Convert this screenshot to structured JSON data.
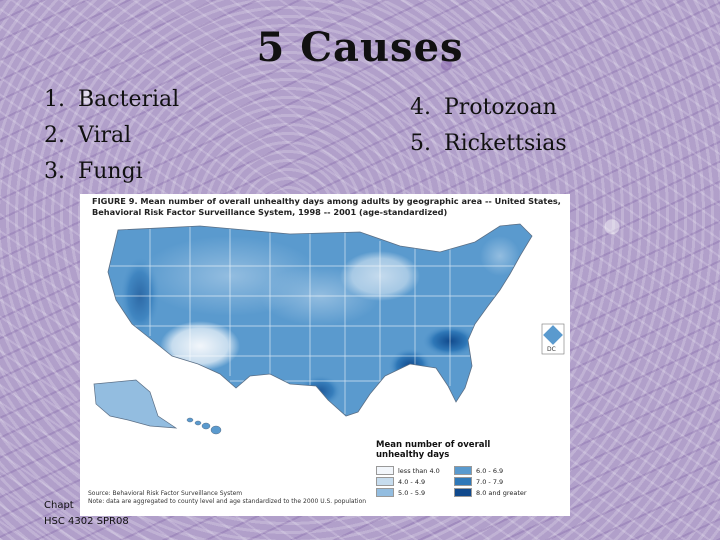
{
  "slide": {
    "title": "5 Causes",
    "causes_left": [
      {
        "num": "1.",
        "label": "Bacterial"
      },
      {
        "num": "2.",
        "label": "Viral"
      },
      {
        "num": "3.",
        "label": "Fungi"
      }
    ],
    "causes_right": [
      {
        "num": "4.",
        "label": "Protozoan"
      },
      {
        "num": "5.",
        "label": "Rickettsias"
      }
    ],
    "footer": {
      "line1": "Chapt",
      "line2": "HSC 4302 SPR08"
    }
  },
  "figure": {
    "title_line1": "FIGURE 9.  Mean number of overall unhealthy days among adults by geographic area -- United States,",
    "title_line2": "Behavioral Risk Factor Surveillance System, 1998 -- 2001 (age-standardized)",
    "dc_label": "DC",
    "legend_title_line1": "Mean number of overall",
    "legend_title_line2": "unhealthy days",
    "legend": [
      {
        "label": "less than 4.0",
        "color": "#f2f6fb"
      },
      {
        "label": "4.0 - 4.9",
        "color": "#c6dcee"
      },
      {
        "label": "5.0 - 5.9",
        "color": "#93bde0"
      },
      {
        "label": "6.0 - 6.9",
        "color": "#5a9ace"
      },
      {
        "label": "7.0 - 7.9",
        "color": "#2f78b8"
      },
      {
        "label": "8.0 and greater",
        "color": "#10498c"
      }
    ],
    "source_line1": "Source: Behavioral Risk Factor Surveillance System",
    "source_line2": "Note: data are aggregated to county level and age standardized to the 2000 U.S. population"
  }
}
